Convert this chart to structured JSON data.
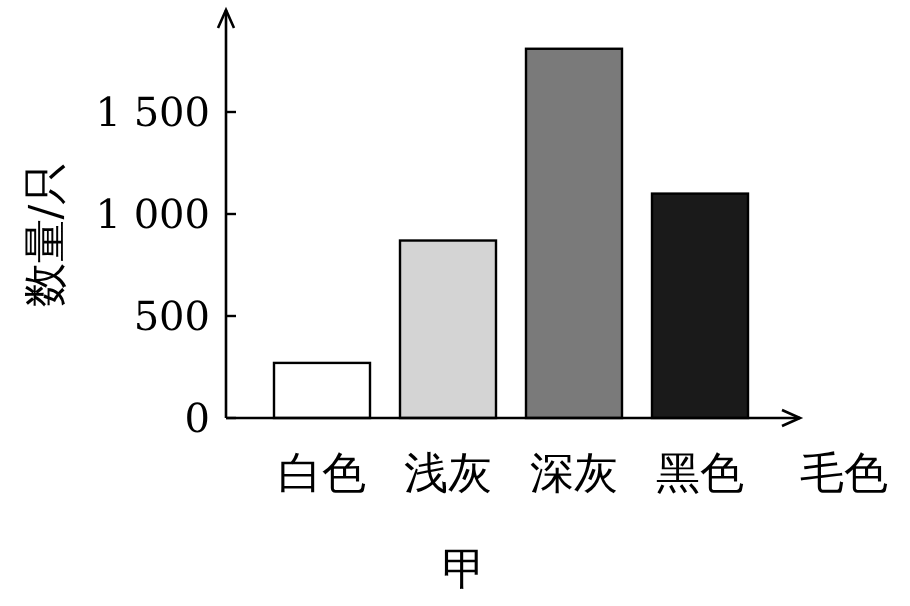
{
  "chart_data": {
    "type": "bar",
    "ylabel": "数量/只",
    "xlabel": "毛色",
    "categories": [
      "白色",
      "浅灰",
      "深灰",
      "黑色"
    ],
    "values": [
      270,
      870,
      1810,
      1100
    ],
    "colors": [
      "#ffffff",
      "#d4d4d4",
      "#7a7a7a",
      "#1a1a1a"
    ],
    "ylim": [
      0,
      2000
    ],
    "yticks": [
      0,
      500,
      {
        "value": 1000,
        "label": "1 000"
      },
      {
        "value": 1500,
        "label": "1 500"
      }
    ],
    "annotations": [
      "甲"
    ]
  }
}
